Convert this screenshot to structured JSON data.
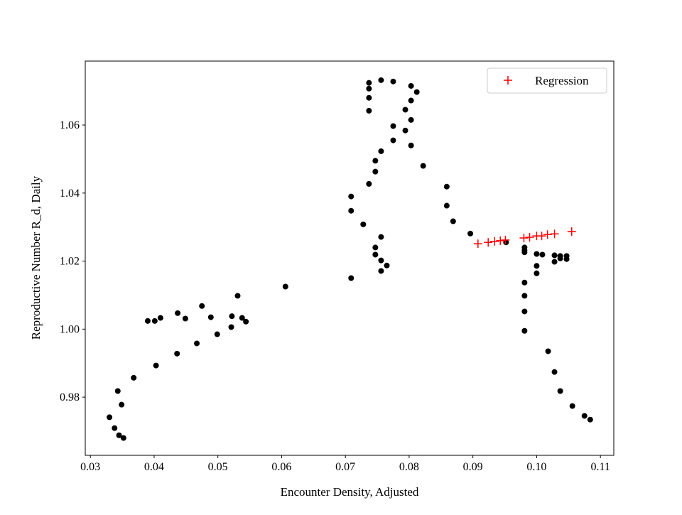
{
  "chart_data": {
    "type": "scatter",
    "title": "",
    "xlabel": "Encounter Density, Adjusted",
    "ylabel": "Reproductive Number R_d, Daily",
    "xlim": [
      0.0292,
      0.1121
    ],
    "ylim": [
      0.9629,
      1.0788
    ],
    "xticks": [
      0.03,
      0.04,
      0.05,
      0.06,
      0.07,
      0.08,
      0.09,
      0.1,
      0.11
    ],
    "xtick_labels": [
      "0.03",
      "0.04",
      "0.05",
      "0.06",
      "0.07",
      "0.08",
      "0.09",
      "0.10",
      "0.11"
    ],
    "yticks": [
      0.98,
      1.0,
      1.02,
      1.04,
      1.06
    ],
    "ytick_labels": [
      "0.98",
      "1.00",
      "1.02",
      "1.04",
      "1.06"
    ],
    "grid": false,
    "legend": {
      "placement": "top-right",
      "entries": [
        "Regression"
      ]
    },
    "series": [
      {
        "name": "Data",
        "marker": "circle",
        "color": "#000000",
        "points": [
          [
            0.0606,
            1.0125
          ],
          [
            0.0531,
            1.0098
          ],
          [
            0.0475,
            1.0068
          ],
          [
            0.0437,
            1.0047
          ],
          [
            0.039,
            1.0024
          ],
          [
            0.0401,
            1.0024
          ],
          [
            0.041,
            1.0033
          ],
          [
            0.0449,
            1.0031
          ],
          [
            0.0489,
            1.0035
          ],
          [
            0.0522,
            1.0038
          ],
          [
            0.0538,
            1.0033
          ],
          [
            0.0544,
            1.0022
          ],
          [
            0.0521,
            1.0006
          ],
          [
            0.0499,
            0.9985
          ],
          [
            0.0467,
            0.9958
          ],
          [
            0.0436,
            0.9928
          ],
          [
            0.0403,
            0.9893
          ],
          [
            0.0368,
            0.9857
          ],
          [
            0.0343,
            0.9818
          ],
          [
            0.0349,
            0.9778
          ],
          [
            0.033,
            0.9741
          ],
          [
            0.0338,
            0.9709
          ],
          [
            0.0345,
            0.9688
          ],
          [
            0.0352,
            0.968
          ],
          [
            0.0737,
            1.0724
          ],
          [
            0.0756,
            1.0732
          ],
          [
            0.0775,
            1.0728
          ],
          [
            0.0803,
            1.0715
          ],
          [
            0.0812,
            1.0697
          ],
          [
            0.0737,
            1.0707
          ],
          [
            0.0737,
            1.068
          ],
          [
            0.0803,
            1.0672
          ],
          [
            0.0737,
            1.0642
          ],
          [
            0.0794,
            1.0645
          ],
          [
            0.0803,
            1.0615
          ],
          [
            0.0775,
            1.0597
          ],
          [
            0.0794,
            1.0584
          ],
          [
            0.0775,
            1.0555
          ],
          [
            0.0803,
            1.054
          ],
          [
            0.0756,
            1.0523
          ],
          [
            0.0747,
            1.0495
          ],
          [
            0.0822,
            1.048
          ],
          [
            0.0747,
            1.0463
          ],
          [
            0.0737,
            1.0427
          ],
          [
            0.0859,
            1.0419
          ],
          [
            0.0709,
            1.039
          ],
          [
            0.0859,
            1.0363
          ],
          [
            0.0709,
            1.0348
          ],
          [
            0.0869,
            1.0317
          ],
          [
            0.0728,
            1.0308
          ],
          [
            0.0896,
            1.0281
          ],
          [
            0.0756,
            1.0271
          ],
          [
            0.0747,
            1.024
          ],
          [
            0.0747,
            1.0219
          ],
          [
            0.0756,
            1.0202
          ],
          [
            0.0765,
            1.0187
          ],
          [
            0.0756,
            1.0171
          ],
          [
            0.0709,
            1.015
          ],
          [
            0.0952,
            1.0255
          ],
          [
            0.0981,
            1.024
          ],
          [
            0.0981,
            1.0232
          ],
          [
            0.0981,
            1.0226
          ],
          [
            0.1,
            1.0221
          ],
          [
            0.1009,
            1.0219
          ],
          [
            0.1028,
            1.0217
          ],
          [
            0.1037,
            1.0215
          ],
          [
            0.1037,
            1.0208
          ],
          [
            0.1047,
            1.0215
          ],
          [
            0.1047,
            1.0206
          ],
          [
            0.1028,
            1.0198
          ],
          [
            0.1,
            1.0186
          ],
          [
            0.1,
            1.0164
          ],
          [
            0.0981,
            1.0137
          ],
          [
            0.0981,
            1.0098
          ],
          [
            0.0981,
            1.0052
          ],
          [
            0.0981,
            0.9995
          ],
          [
            0.1018,
            0.9935
          ],
          [
            0.1028,
            0.9874
          ],
          [
            0.1037,
            0.9818
          ],
          [
            0.1056,
            0.9774
          ],
          [
            0.1075,
            0.9745
          ],
          [
            0.1084,
            0.9734
          ]
        ]
      },
      {
        "name": "Regression",
        "marker": "plus",
        "color": "#ff0000",
        "points": [
          [
            0.0908,
            1.0251
          ],
          [
            0.0924,
            1.0255
          ],
          [
            0.0934,
            1.0258
          ],
          [
            0.0943,
            1.026
          ],
          [
            0.0951,
            1.0262
          ],
          [
            0.098,
            1.0268
          ],
          [
            0.0989,
            1.027
          ],
          [
            0.1,
            1.0274
          ],
          [
            0.1008,
            1.0274
          ],
          [
            0.1017,
            1.0278
          ],
          [
            0.1028,
            1.028
          ],
          [
            0.1055,
            1.0287
          ]
        ]
      }
    ]
  }
}
